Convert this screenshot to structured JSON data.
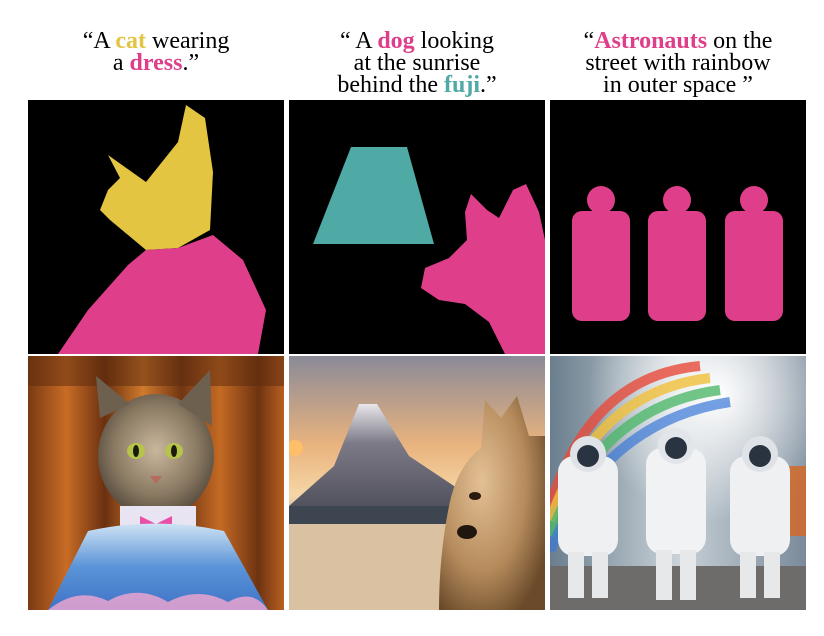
{
  "colors": {
    "yellow": "#e3c541",
    "pink": "#df3f8a",
    "teal": "#4fa9a4",
    "mask_background": "#000000"
  },
  "captions": [
    {
      "lines": [
        [
          {
            "t": "“A "
          },
          {
            "t": "cat",
            "c": "yellow"
          },
          {
            "t": " wearing"
          }
        ],
        [
          {
            "t": "a "
          },
          {
            "t": "dress",
            "c": "pink"
          },
          {
            "t": ".”"
          }
        ]
      ]
    },
    {
      "lines": [
        [
          {
            "t": "“ A "
          },
          {
            "t": "dog",
            "c": "pink"
          },
          {
            "t": " looking"
          }
        ],
        [
          {
            "t": "at the sunrise"
          }
        ],
        [
          {
            "t": "behind the "
          },
          {
            "t": "fuji",
            "c": "teal"
          },
          {
            "t": ".”"
          }
        ]
      ]
    },
    {
      "lines": [
        [
          {
            "t": "“"
          },
          {
            "t": "Astronauts",
            "c": "pink"
          },
          {
            "t": " on the"
          }
        ],
        [
          {
            "t": "street with rainbow"
          }
        ],
        [
          {
            "t": "in outer space ”"
          }
        ]
      ]
    }
  ]
}
